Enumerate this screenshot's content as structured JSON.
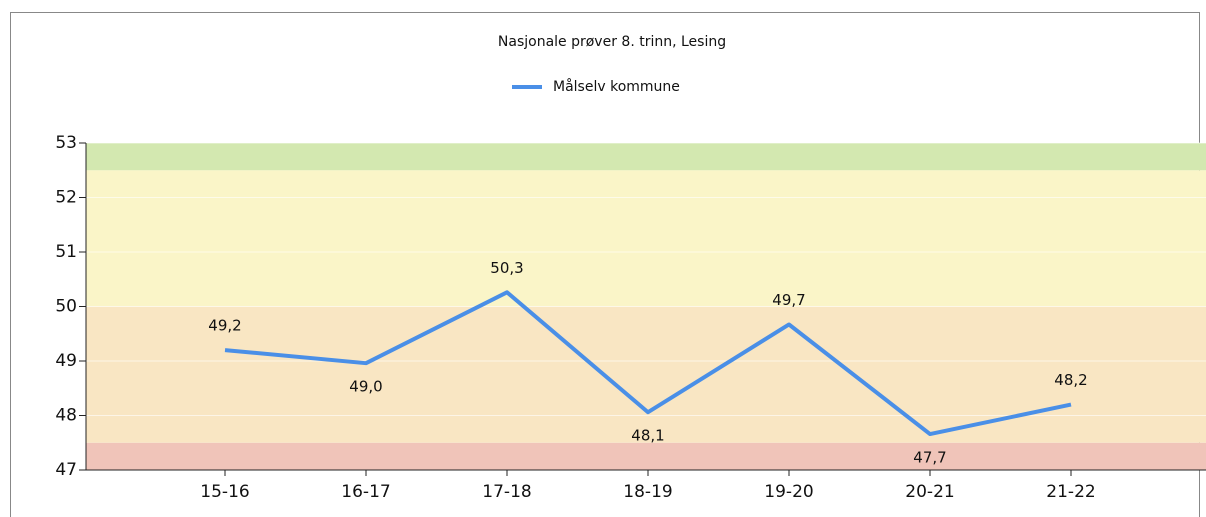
{
  "chart_data": {
    "type": "line",
    "title": "Nasjonale prøver 8. trinn, Lesing",
    "categories": [
      "15-16",
      "16-17",
      "17-18",
      "18-19",
      "19-20",
      "20-21",
      "21-22"
    ],
    "series": [
      {
        "name": "Målselv kommune",
        "color": "#4a8fe7",
        "values": [
          49.2,
          48.96,
          50.26,
          48.06,
          49.67,
          47.66,
          48.2
        ],
        "value_labels": [
          "49,2",
          "49,0",
          "50,3",
          "48,1",
          "49,7",
          "47,7",
          "48,2"
        ]
      }
    ],
    "ylim": [
      47,
      53
    ],
    "yticks": [
      47,
      48,
      49,
      50,
      51,
      52,
      53
    ],
    "grid": true,
    "legend": "top",
    "bands": [
      {
        "from": 47,
        "to": 47.5,
        "color": "#f0c4b9"
      },
      {
        "from": 47.5,
        "to": 50,
        "color": "#f9e6c3"
      },
      {
        "from": 50,
        "to": 52.5,
        "color": "#faf5c8"
      },
      {
        "from": 52.5,
        "to": 53,
        "color": "#d3e8b0"
      }
    ]
  }
}
